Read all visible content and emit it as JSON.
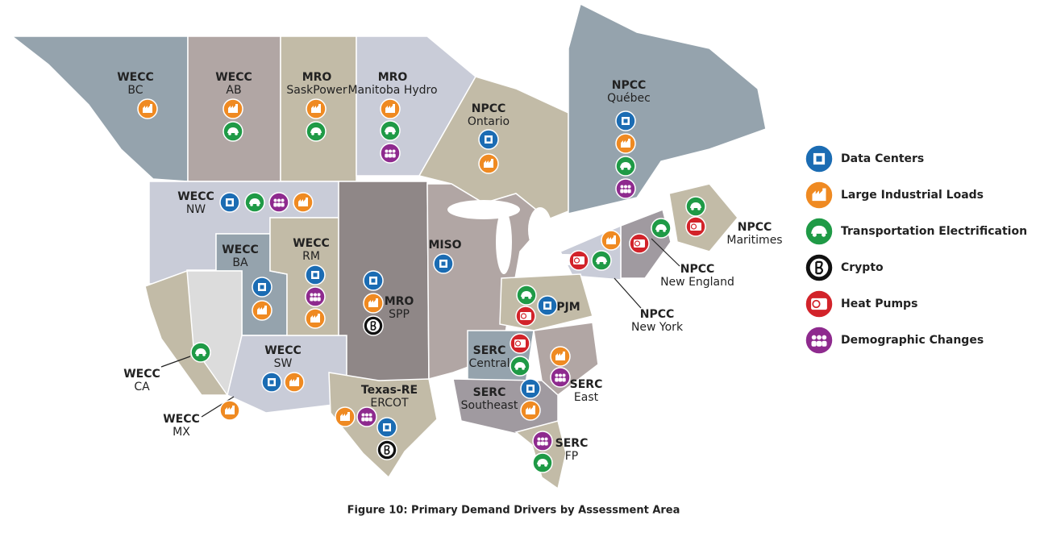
{
  "caption": "Figure 10: Primary Demand Drivers by Assessment Area",
  "legend": [
    {
      "label": "Data Centers",
      "color": "#1b6cb3"
    },
    {
      "label": "Large Industrial Loads",
      "color": "#ef8a22"
    },
    {
      "label": "Transportation Electrification",
      "color": "#1f9a46"
    },
    {
      "label": "Crypto",
      "color": "#111111"
    },
    {
      "label": "Heat Pumps",
      "color": "#d2232a"
    },
    {
      "label": "Demographic Changes",
      "color": "#8e2a8e"
    }
  ],
  "areas": [
    {
      "entity": "WECC",
      "name": "BC",
      "drivers": [
        1
      ]
    },
    {
      "entity": "WECC",
      "name": "AB",
      "drivers": [
        1,
        2
      ]
    },
    {
      "entity": "MRO",
      "name": "SaskPower",
      "drivers": [
        1,
        2
      ]
    },
    {
      "entity": "MRO",
      "name": "Manitoba Hydro",
      "drivers": [
        1,
        2,
        5
      ]
    },
    {
      "entity": "NPCC",
      "name": "Ontario",
      "drivers": [
        0,
        1
      ]
    },
    {
      "entity": "NPCC",
      "name": "Québec",
      "drivers": [
        0,
        1,
        2,
        5
      ]
    },
    {
      "entity": "NPCC",
      "name": "Maritimes",
      "drivers": [
        2,
        4
      ]
    },
    {
      "entity": "NPCC",
      "name": "New England",
      "drivers": [
        2,
        4
      ]
    },
    {
      "entity": "NPCC",
      "name": "New York",
      "drivers": [
        1,
        4,
        2
      ]
    },
    {
      "entity": "WECC",
      "name": "NW",
      "drivers": [
        0,
        2,
        5,
        1
      ]
    },
    {
      "entity": "WECC",
      "name": "BA",
      "drivers": [
        0,
        1
      ]
    },
    {
      "entity": "WECC",
      "name": "RM",
      "drivers": [
        0,
        5,
        1
      ]
    },
    {
      "entity": "MISO",
      "name": "",
      "drivers": [
        0
      ]
    },
    {
      "entity": "MRO",
      "name": "SPP",
      "drivers": [
        0,
        1,
        3
      ]
    },
    {
      "entity": "PJM",
      "name": "",
      "drivers": [
        2,
        0,
        4
      ]
    },
    {
      "entity": "WECC",
      "name": "SW",
      "drivers": [
        0,
        1
      ]
    },
    {
      "entity": "WECC",
      "name": "CA",
      "drivers": [
        2
      ]
    },
    {
      "entity": "WECC",
      "name": "MX",
      "drivers": [
        1
      ]
    },
    {
      "entity": "Texas-RE",
      "name": "ERCOT",
      "drivers": [
        1,
        5,
        0,
        3
      ]
    },
    {
      "entity": "SERC",
      "name": "Central",
      "drivers": [
        4,
        2
      ]
    },
    {
      "entity": "SERC",
      "name": "Southeast",
      "drivers": [
        0,
        1
      ]
    },
    {
      "entity": "SERC",
      "name": "East",
      "drivers": [
        1,
        5
      ]
    },
    {
      "entity": "SERC",
      "name": "FP",
      "drivers": [
        5,
        2
      ]
    }
  ]
}
